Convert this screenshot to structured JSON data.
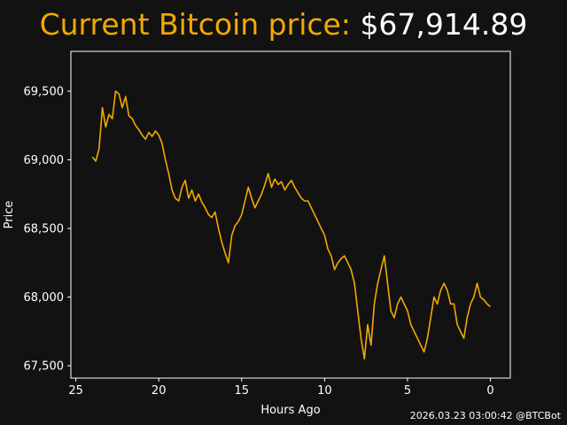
{
  "header": {
    "title_prefix": "Current Bitcoin price:",
    "price": "$67,914.89"
  },
  "footer": {
    "timestamp_credit": "2026.03.23 03:00:42 @BTCBot"
  },
  "colors": {
    "background": "#121212",
    "line": "#f2a900",
    "title_accent": "#f2a900",
    "text": "#ffffff",
    "frame": "#ffffff"
  },
  "chart_data": {
    "type": "line",
    "title": "Current Bitcoin price: $67,914.89",
    "xlabel": "Hours Ago",
    "ylabel": "Price",
    "xlim": [
      25.3,
      -1.2
    ],
    "x_inverted": true,
    "ylim": [
      67410,
      69790
    ],
    "grid": false,
    "x_ticks": [
      25,
      20,
      15,
      10,
      5,
      0
    ],
    "x_tick_labels": [
      "25",
      "20",
      "15",
      "10",
      "5",
      "0"
    ],
    "y_ticks": [
      67500,
      68000,
      68500,
      69000,
      69500
    ],
    "y_tick_labels": [
      "67,500",
      "68,000",
      "68,500",
      "69,000",
      "69,500"
    ],
    "series": [
      {
        "color": "#f2a900",
        "x": [
          24.0,
          23.8,
          23.6,
          23.4,
          23.2,
          23.0,
          22.8,
          22.6,
          22.4,
          22.2,
          22.0,
          21.8,
          21.6,
          21.4,
          21.2,
          21.0,
          20.8,
          20.6,
          20.4,
          20.2,
          20.0,
          19.8,
          19.6,
          19.4,
          19.2,
          19.0,
          18.8,
          18.6,
          18.4,
          18.2,
          18.0,
          17.8,
          17.6,
          17.4,
          17.2,
          17.0,
          16.8,
          16.6,
          16.4,
          16.2,
          16.0,
          15.8,
          15.6,
          15.4,
          15.2,
          15.0,
          14.8,
          14.6,
          14.4,
          14.2,
          14.0,
          13.8,
          13.6,
          13.4,
          13.2,
          13.0,
          12.8,
          12.6,
          12.4,
          12.2,
          12.0,
          11.8,
          11.6,
          11.4,
          11.2,
          11.0,
          10.8,
          10.6,
          10.4,
          10.2,
          10.0,
          9.8,
          9.6,
          9.4,
          9.2,
          9.0,
          8.8,
          8.6,
          8.4,
          8.2,
          8.0,
          7.8,
          7.6,
          7.4,
          7.2,
          7.0,
          6.8,
          6.6,
          6.4,
          6.2,
          6.0,
          5.8,
          5.6,
          5.4,
          5.2,
          5.0,
          4.8,
          4.6,
          4.4,
          4.2,
          4.0,
          3.8,
          3.6,
          3.4,
          3.2,
          3.0,
          2.8,
          2.6,
          2.4,
          2.2,
          2.0,
          1.8,
          1.6,
          1.4,
          1.2,
          1.0,
          0.8,
          0.6,
          0.4,
          0.2,
          0.0
        ],
        "y": [
          69020,
          68990,
          69080,
          69380,
          69240,
          69330,
          69300,
          69500,
          69480,
          69380,
          69460,
          69320,
          69300,
          69250,
          69220,
          69180,
          69150,
          69200,
          69170,
          69210,
          69180,
          69120,
          69000,
          68900,
          68780,
          68720,
          68700,
          68800,
          68850,
          68720,
          68780,
          68700,
          68750,
          68690,
          68650,
          68600,
          68580,
          68620,
          68500,
          68400,
          68320,
          68250,
          68450,
          68520,
          68550,
          68600,
          68700,
          68800,
          68720,
          68650,
          68700,
          68750,
          68820,
          68900,
          68800,
          68860,
          68820,
          68840,
          68780,
          68820,
          68850,
          68800,
          68760,
          68720,
          68700,
          68700,
          68650,
          68600,
          68550,
          68500,
          68450,
          68350,
          68300,
          68200,
          68250,
          68280,
          68300,
          68250,
          68200,
          68100,
          67900,
          67700,
          67550,
          67800,
          67650,
          67950,
          68100,
          68200,
          68300,
          68100,
          67900,
          67850,
          67950,
          68000,
          67950,
          67900,
          67800,
          67750,
          67700,
          67650,
          67600,
          67700,
          67850,
          68000,
          67950,
          68050,
          68100,
          68050,
          67950,
          67950,
          67800,
          67750,
          67700,
          67850,
          67950,
          68000,
          68100,
          68000,
          67980,
          67950,
          67930
        ]
      }
    ]
  }
}
